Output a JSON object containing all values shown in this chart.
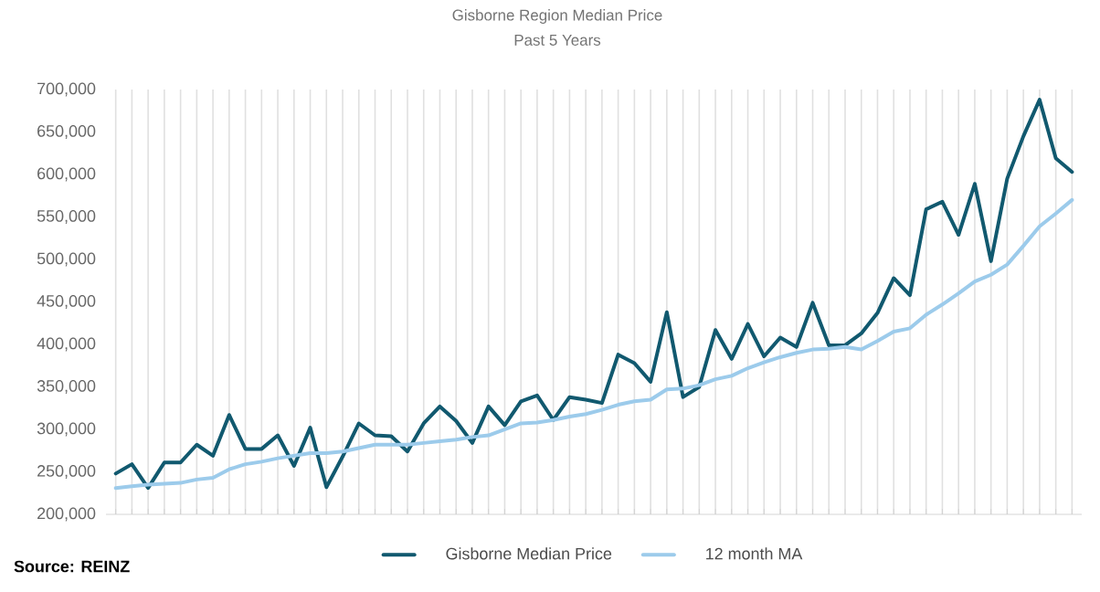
{
  "chart_data": {
    "type": "line",
    "title": "Gisborne Region Median Price",
    "subtitle": "Past 5 Years",
    "categories": [
      null,
      null,
      null,
      null,
      null,
      null,
      null,
      null,
      null,
      null,
      null,
      null,
      null,
      null,
      null,
      null,
      null,
      null,
      null,
      null,
      null,
      null,
      null,
      null,
      null,
      null,
      null,
      null,
      null,
      null,
      null,
      null,
      null,
      null,
      null,
      null,
      null,
      null,
      null,
      null,
      null,
      null,
      null,
      null,
      null,
      null,
      null,
      null,
      null,
      null,
      null,
      null,
      null,
      null,
      null,
      null,
      null,
      null,
      null,
      null
    ],
    "series": [
      {
        "name": "Gisborne Median Price",
        "color": "#11596f",
        "values": [
          248000,
          259000,
          231000,
          261000,
          261000,
          282000,
          269000,
          317000,
          277000,
          277000,
          293000,
          257000,
          302000,
          232000,
          268000,
          307000,
          293000,
          292000,
          274000,
          307000,
          327000,
          310000,
          284000,
          327000,
          305000,
          333000,
          340000,
          311000,
          338000,
          335000,
          331000,
          388000,
          378000,
          356000,
          438000,
          338000,
          350000,
          417000,
          383000,
          424000,
          386000,
          408000,
          397000,
          449000,
          399000,
          399000,
          413000,
          437000,
          478000,
          458000,
          559000,
          568000,
          529000,
          589000,
          498000,
          595000,
          645000,
          688000,
          619000,
          603000
        ]
      },
      {
        "name": "12 month MA",
        "color": "#9ccbeb",
        "values": [
          231000,
          233000,
          235000,
          236000,
          237000,
          241000,
          243000,
          253000,
          259000,
          262000,
          266000,
          269000,
          272000,
          272000,
          274000,
          278000,
          282000,
          282000,
          282000,
          284000,
          286000,
          288000,
          291000,
          293000,
          300000,
          307000,
          308000,
          311000,
          315000,
          318000,
          323000,
          329000,
          333000,
          335000,
          347000,
          348000,
          352000,
          359000,
          363000,
          372000,
          379000,
          385000,
          390000,
          394000,
          395000,
          397000,
          394000,
          404000,
          415000,
          419000,
          435000,
          447000,
          460000,
          474000,
          482000,
          494000,
          516000,
          539000,
          554000,
          570000
        ]
      }
    ],
    "ylim": [
      200000,
      700000
    ],
    "yticks": [
      {
        "value": 200000,
        "label": "200,000"
      },
      {
        "value": 250000,
        "label": "250,000"
      },
      {
        "value": 300000,
        "label": "300,000"
      },
      {
        "value": 350000,
        "label": "350,000"
      },
      {
        "value": 400000,
        "label": "400,000"
      },
      {
        "value": 450000,
        "label": "450,000"
      },
      {
        "value": 500000,
        "label": "500,000"
      },
      {
        "value": 550000,
        "label": "550,000"
      },
      {
        "value": 600000,
        "label": "600,000"
      },
      {
        "value": 650000,
        "label": "650,000"
      },
      {
        "value": 700000,
        "label": "700,000"
      }
    ],
    "tick_labels": "y",
    "grid": "x",
    "legend": "bottom",
    "marker": "none",
    "line_style": "solid",
    "annotations": [
      "Source: REINZ"
    ]
  }
}
